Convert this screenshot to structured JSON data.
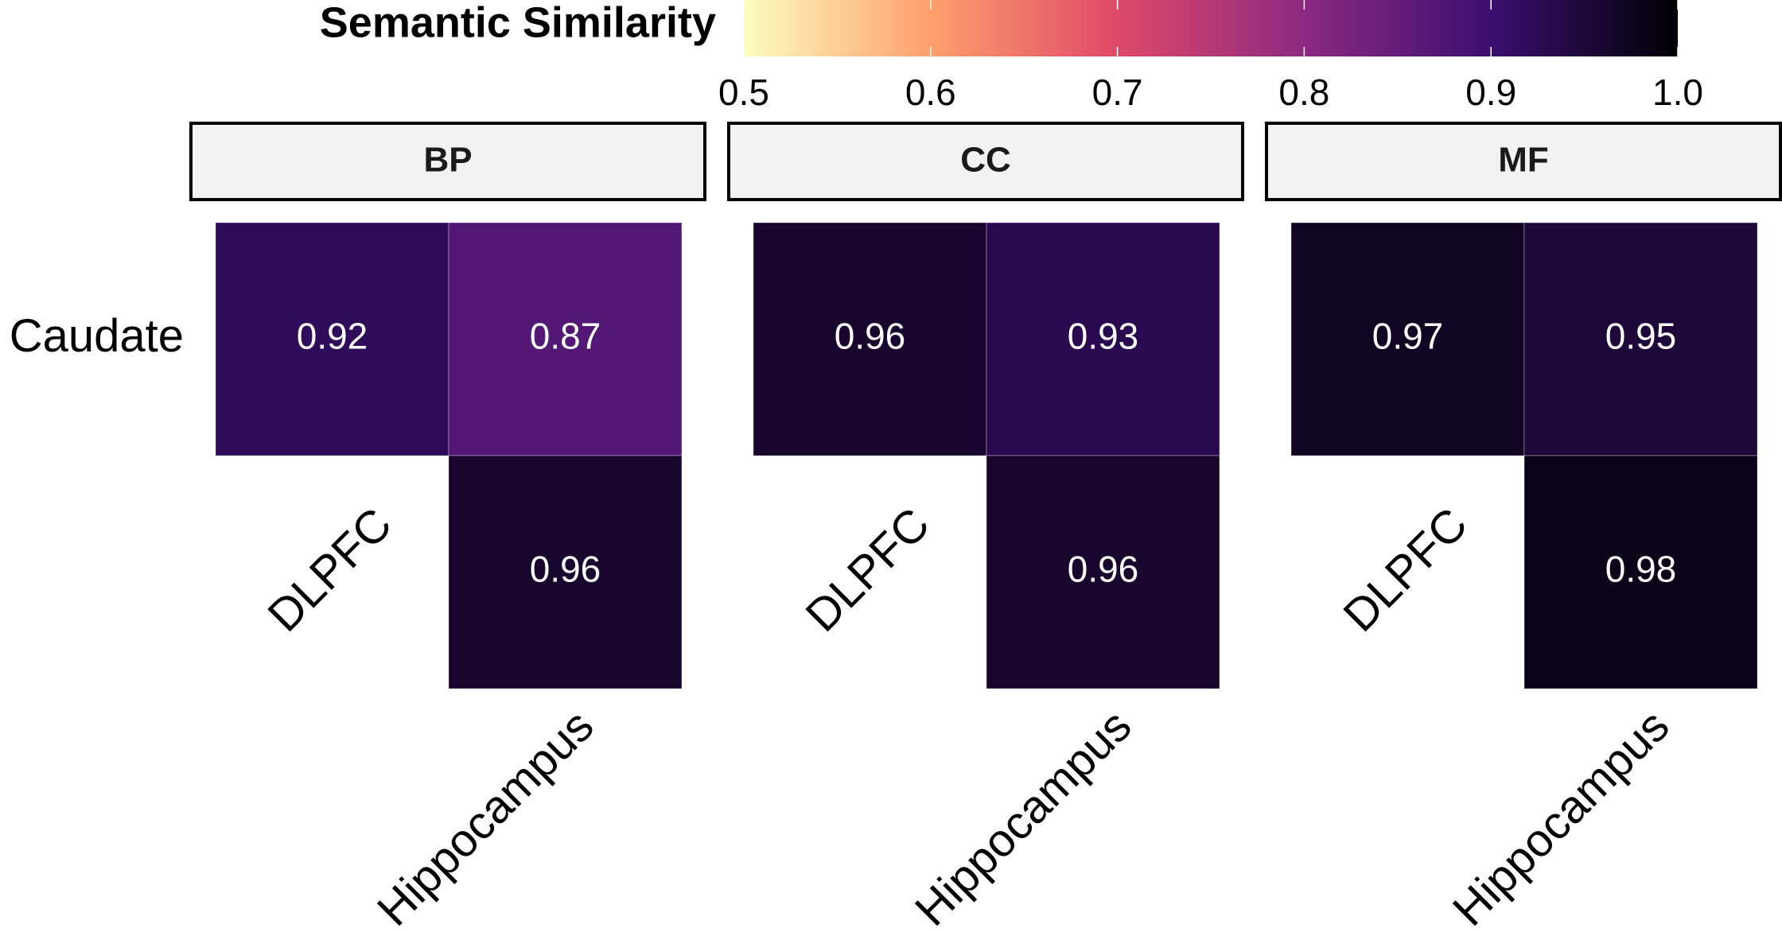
{
  "chart_data": {
    "type": "heatmap",
    "colorbar_title": "Semantic Similarity",
    "zlim": [
      0.5,
      1
    ],
    "zticks": [
      0.5,
      0.6,
      0.7,
      0.8,
      0.9,
      {
        "value": 1,
        "label": "1.0"
      }
    ],
    "colorscale": [
      "#fcfdbf",
      "#fe9f6d",
      "#de4968",
      "#8c2981",
      "#3b0f70",
      "#000004"
    ],
    "labels": [
      "Caudate",
      "DLPFC",
      "Hippocampus"
    ],
    "facets": [
      {
        "name": "BP",
        "values": [
          [
            0.92,
            0.87
          ],
          [
            null,
            0.96
          ]
        ]
      },
      {
        "name": "CC",
        "values": [
          [
            0.96,
            0.93
          ],
          [
            null,
            0.96
          ]
        ]
      },
      {
        "name": "MF",
        "values": [
          [
            0.97,
            0.95
          ],
          [
            null,
            0.98
          ]
        ]
      }
    ]
  }
}
